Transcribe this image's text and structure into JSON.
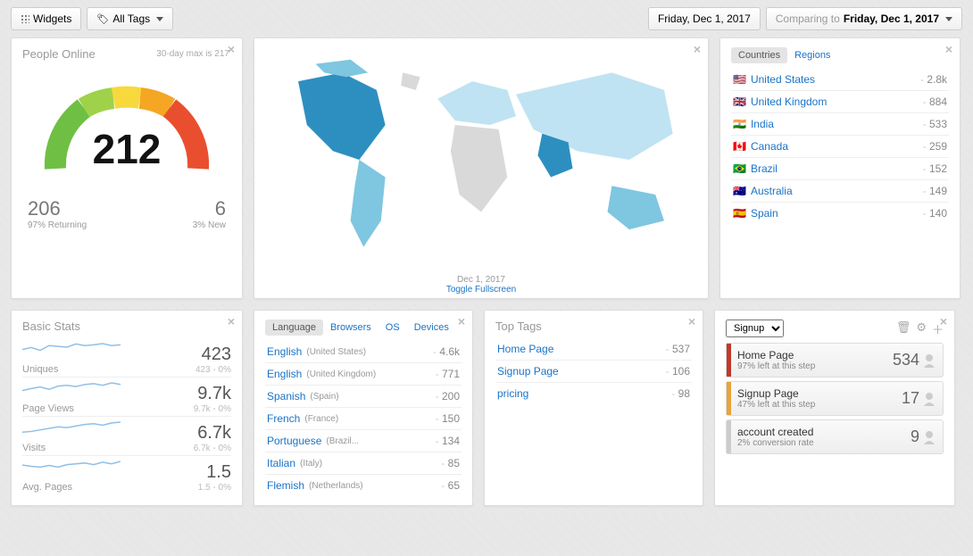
{
  "topbar": {
    "widgets_label": "Widgets",
    "tags_label": "All Tags",
    "date_current": "Friday, Dec 1, 2017",
    "compare_prefix": "Comparing to ",
    "compare_date": "Friday, Dec 1, 2017"
  },
  "people_online": {
    "title": "People Online",
    "subnote": "30-day max is 217",
    "value": "212",
    "returning_count": "206",
    "returning_label": "97% Returning",
    "new_count": "6",
    "new_label": "3% New",
    "gauge_colors": [
      "#6fbf44",
      "#9fd24a",
      "#f7d93e",
      "#f5a623",
      "#e94f2e"
    ]
  },
  "map": {
    "date": "Dec 1, 2017",
    "toggle": "Toggle Fullscreen",
    "land_light": "#bfe3f2",
    "land_mid": "#7fc6e0",
    "land_dark": "#2d8fc0",
    "land_off": "#d9d9d9"
  },
  "countries": {
    "tabs": [
      "Countries",
      "Regions"
    ],
    "active": 0,
    "rows": [
      {
        "flag": "🇺🇸",
        "name": "United States",
        "val": "2.8k"
      },
      {
        "flag": "🇬🇧",
        "name": "United Kingdom",
        "val": "884"
      },
      {
        "flag": "🇮🇳",
        "name": "India",
        "val": "533"
      },
      {
        "flag": "🇨🇦",
        "name": "Canada",
        "val": "259"
      },
      {
        "flag": "🇧🇷",
        "name": "Brazil",
        "val": "152"
      },
      {
        "flag": "🇦🇺",
        "name": "Australia",
        "val": "149"
      },
      {
        "flag": "🇪🇸",
        "name": "Spain",
        "val": "140"
      }
    ]
  },
  "basic_stats": {
    "title": "Basic Stats",
    "items": [
      {
        "label": "Uniques",
        "value": "423",
        "cmp": "423 - 0%",
        "spark": "30,35,28,40,38,36,44,40,42,45,40,42"
      },
      {
        "label": "Page Views",
        "value": "9.7k",
        "cmp": "9.7k - 0%",
        "spark": "25,30,34,28,36,38,35,40,42,38,44,40"
      },
      {
        "label": "Visits",
        "value": "6.7k",
        "cmp": "6.7k - 0%",
        "spark": "20,22,26,30,34,32,36,40,42,38,44,46"
      },
      {
        "label": "Avg. Pages",
        "value": "1.5",
        "cmp": "1.5 - 0%",
        "spark": "35,32,30,34,30,36,38,40,36,42,38,44"
      }
    ],
    "spark_color": "#8fbfe8"
  },
  "language": {
    "tabs": [
      "Language",
      "Browsers",
      "OS",
      "Devices"
    ],
    "active": 0,
    "rows": [
      {
        "name": "English",
        "sub": "(United States)",
        "val": "4.6k"
      },
      {
        "name": "English",
        "sub": "(United Kingdom)",
        "val": "771"
      },
      {
        "name": "Spanish",
        "sub": "(Spain)",
        "val": "200"
      },
      {
        "name": "French",
        "sub": "(France)",
        "val": "150"
      },
      {
        "name": "Portuguese",
        "sub": "(Brazil...",
        "val": "134"
      },
      {
        "name": "Italian",
        "sub": "(Italy)",
        "val": "85"
      },
      {
        "name": "Flemish",
        "sub": "(Netherlands)",
        "val": "65"
      }
    ]
  },
  "toptags": {
    "title": "Top Tags",
    "rows": [
      {
        "name": "Home Page",
        "val": "537"
      },
      {
        "name": "Signup Page",
        "val": "106"
      },
      {
        "name": "pricing",
        "val": "98"
      }
    ]
  },
  "funnel": {
    "selector": "Signup",
    "steps": [
      {
        "color": "#c0392b",
        "title": "Home Page",
        "sub": "97% left at this step",
        "count": "534"
      },
      {
        "color": "#e8a33d",
        "title": "Signup Page",
        "sub": "47% left at this step",
        "count": "17"
      },
      {
        "color": "#cccccc",
        "title": "account created",
        "sub": "2% conversion rate",
        "count": "9"
      }
    ]
  }
}
